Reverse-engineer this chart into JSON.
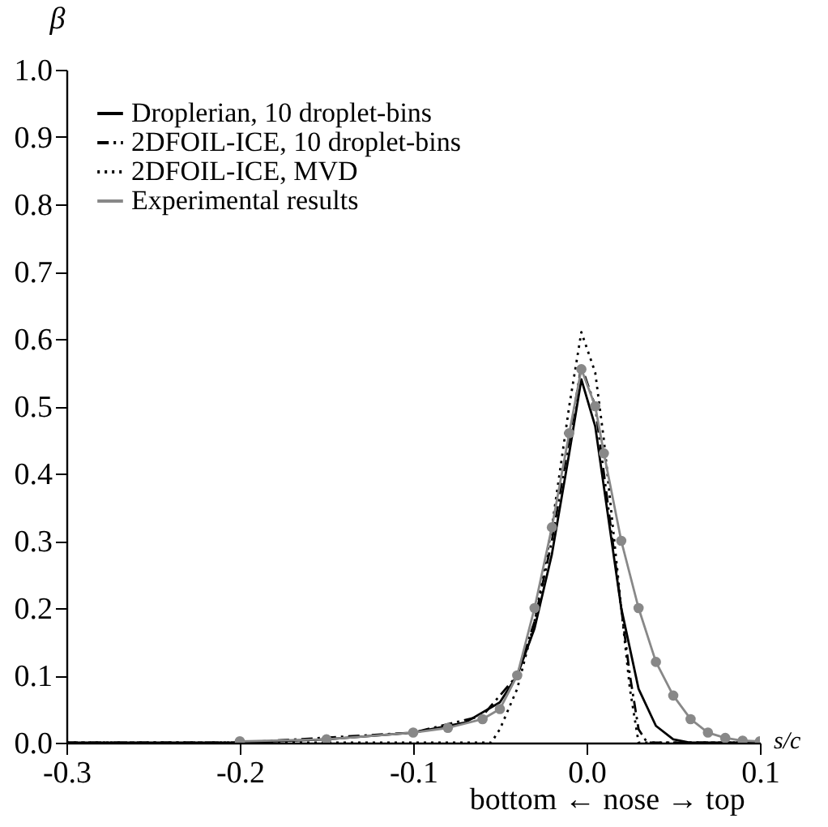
{
  "chart_data": {
    "type": "line",
    "ylabel": "β",
    "xlabel": "s/c",
    "annotations": [
      "bottom ← nose → top"
    ],
    "xlim": [
      -0.3,
      0.1
    ],
    "ylim": [
      0,
      1.0
    ],
    "xticks": [
      -0.3,
      -0.2,
      -0.1,
      {
        "value": 0,
        "label": "0.0"
      },
      0.1
    ],
    "yticks": [
      {
        "value": 0,
        "label": "0.0"
      },
      0.1,
      0.2,
      0.3,
      0.4,
      0.5,
      0.6,
      0.7,
      0.8,
      0.9,
      {
        "value": 1,
        "label": "1.0"
      }
    ],
    "grid": false,
    "legend": "top left",
    "series": [
      {
        "name": "Droplerian, 10 droplet-bins",
        "color": "#000000",
        "line_style": "solid",
        "marker": "none",
        "x": [
          -0.3,
          -0.2,
          -0.15,
          -0.1,
          -0.07,
          -0.05,
          -0.04,
          -0.03,
          -0.02,
          -0.01,
          -0.003,
          0.005,
          0.01,
          0.02,
          0.03,
          0.04,
          0.05,
          0.06,
          0.1
        ],
        "values": [
          0,
          0,
          0.005,
          0.015,
          0.03,
          0.06,
          0.1,
          0.17,
          0.28,
          0.43,
          0.54,
          0.47,
          0.38,
          0.2,
          0.08,
          0.025,
          0.005,
          0,
          0
        ]
      },
      {
        "name": "2DFOIL-ICE, 10 droplet-bins",
        "color": "#000000",
        "line_style": "dashdot",
        "marker": "none",
        "x": [
          -0.3,
          -0.2,
          -0.1,
          -0.06,
          -0.04,
          -0.03,
          -0.02,
          -0.01,
          -0.003,
          0.005,
          0.01,
          0.02,
          0.025,
          0.03,
          0.035,
          0.1
        ],
        "values": [
          0,
          0,
          0.015,
          0.04,
          0.1,
          0.18,
          0.3,
          0.45,
          0.56,
          0.5,
          0.4,
          0.2,
          0.1,
          0.02,
          0,
          0
        ]
      },
      {
        "name": "2DFOIL-ICE, MVD",
        "color": "#000000",
        "line_style": "dotted",
        "marker": "none",
        "x": [
          -0.3,
          -0.055,
          -0.05,
          -0.04,
          -0.03,
          -0.02,
          -0.01,
          -0.003,
          0.005,
          0.01,
          0.02,
          0.025,
          0.03,
          0.1
        ],
        "values": [
          0,
          0,
          0.02,
          0.08,
          0.18,
          0.32,
          0.5,
          0.61,
          0.55,
          0.45,
          0.2,
          0.08,
          0,
          0
        ]
      },
      {
        "name": "Experimental results",
        "color": "#888888",
        "line_style": "solid",
        "marker": "circle",
        "x": [
          -0.2,
          -0.15,
          -0.1,
          -0.08,
          -0.06,
          -0.05,
          -0.04,
          -0.03,
          -0.02,
          -0.01,
          -0.003,
          0.005,
          0.01,
          0.02,
          0.03,
          0.04,
          0.05,
          0.06,
          0.07,
          0.08,
          0.09,
          0.1
        ],
        "values": [
          0.002,
          0.005,
          0.015,
          0.022,
          0.035,
          0.05,
          0.1,
          0.2,
          0.32,
          0.46,
          0.555,
          0.5,
          0.43,
          0.3,
          0.2,
          0.12,
          0.07,
          0.035,
          0.015,
          0.007,
          0.003,
          0.002
        ]
      }
    ]
  }
}
